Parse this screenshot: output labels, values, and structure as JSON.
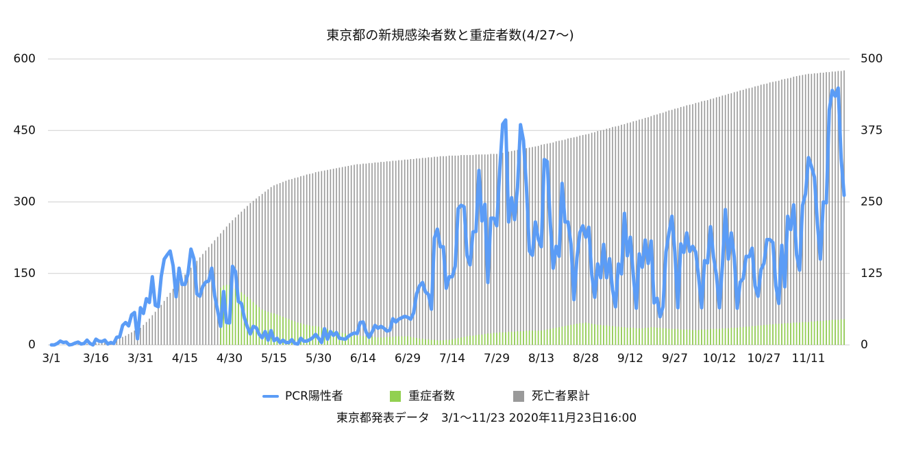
{
  "chart_data": {
    "type": "combo",
    "title": "東京都の新規感染者数と重症者数(4/27〜)",
    "source": "東京都発表データ　3/1〜11/23 2020年11月23日16:00",
    "categories": [
      "3/1",
      null,
      null,
      null,
      null,
      null,
      null,
      null,
      null,
      null,
      null,
      null,
      null,
      null,
      null,
      "3/16",
      null,
      null,
      null,
      null,
      null,
      null,
      null,
      null,
      null,
      null,
      null,
      null,
      null,
      null,
      "3/31",
      null,
      null,
      null,
      null,
      null,
      null,
      null,
      null,
      null,
      null,
      null,
      null,
      null,
      null,
      "4/15",
      null,
      null,
      null,
      null,
      null,
      null,
      null,
      null,
      null,
      null,
      null,
      null,
      null,
      null,
      "4/30",
      null,
      null,
      null,
      null,
      null,
      null,
      null,
      null,
      null,
      null,
      null,
      null,
      null,
      null,
      "5/15",
      null,
      null,
      null,
      null,
      null,
      null,
      null,
      null,
      null,
      null,
      null,
      null,
      null,
      null,
      "5/30",
      null,
      null,
      null,
      null,
      null,
      null,
      null,
      null,
      null,
      null,
      null,
      null,
      null,
      null,
      "6/14",
      null,
      null,
      null,
      null,
      null,
      null,
      null,
      null,
      null,
      null,
      null,
      null,
      null,
      null,
      "6/29",
      null,
      null,
      null,
      null,
      null,
      null,
      null,
      null,
      null,
      null,
      null,
      null,
      null,
      null,
      "7/14",
      null,
      null,
      null,
      null,
      null,
      null,
      null,
      null,
      null,
      null,
      null,
      null,
      null,
      null,
      "7/29",
      null,
      null,
      null,
      null,
      null,
      null,
      null,
      null,
      null,
      null,
      null,
      null,
      null,
      null,
      "8/13",
      null,
      null,
      null,
      null,
      null,
      null,
      null,
      null,
      null,
      null,
      null,
      null,
      null,
      null,
      "8/28",
      null,
      null,
      null,
      null,
      null,
      null,
      null,
      null,
      null,
      null,
      null,
      null,
      null,
      null,
      "9/12",
      null,
      null,
      null,
      null,
      null,
      null,
      null,
      null,
      null,
      null,
      null,
      null,
      null,
      null,
      "9/27",
      null,
      null,
      null,
      null,
      null,
      null,
      null,
      null,
      null,
      null,
      null,
      null,
      null,
      null,
      "10/12",
      null,
      null,
      null,
      null,
      null,
      null,
      null,
      null,
      null,
      null,
      null,
      null,
      null,
      null,
      "10/27",
      null,
      null,
      null,
      null,
      null,
      null,
      null,
      null,
      null,
      null,
      null,
      null,
      null,
      null,
      "11/11",
      null,
      null,
      null,
      null,
      null,
      null,
      null,
      null,
      null,
      null,
      null,
      null
    ],
    "series": [
      {
        "name": "死亡者累計",
        "type": "bar",
        "axis": "y2",
        "color": "#9a9a9a",
        "values": [
          0,
          0,
          0,
          0,
          0,
          0,
          0,
          0,
          1,
          1,
          1,
          1,
          2,
          2,
          2,
          3,
          3,
          4,
          5,
          6,
          7,
          8,
          10,
          12,
          14,
          16,
          19,
          22,
          25,
          27,
          30,
          35,
          40,
          46,
          52,
          58,
          64,
          70,
          77,
          84,
          91,
          98,
          105,
          111,
          117,
          123,
          129,
          135,
          141,
          147,
          153,
          159,
          165,
          171,
          177,
          183,
          189,
          195,
          201,
          207,
          213,
          218,
          223,
          228,
          233,
          238,
          243,
          248,
          252,
          256,
          260,
          264,
          268,
          272,
          276,
          279,
          281,
          283,
          285,
          287,
          289,
          290,
          292,
          293,
          295,
          296,
          298,
          299,
          300,
          302,
          303,
          304,
          305,
          306,
          307,
          308,
          309,
          310,
          311,
          312,
          313,
          314,
          315,
          316,
          316,
          317,
          317,
          318,
          318,
          319,
          319,
          320,
          320,
          321,
          321,
          322,
          322,
          323,
          323,
          324,
          324,
          325,
          325,
          326,
          326,
          327,
          327,
          328,
          328,
          329,
          329,
          330,
          330,
          330,
          331,
          331,
          331,
          331,
          332,
          332,
          332,
          332,
          332,
          333,
          333,
          333,
          333,
          333,
          334,
          334,
          334,
          335,
          336,
          337,
          338,
          339,
          340,
          341,
          342,
          343,
          344,
          345,
          346,
          347,
          348,
          350,
          351,
          352,
          353,
          354,
          356,
          357,
          358,
          359,
          361,
          362,
          363,
          364,
          366,
          367,
          368,
          369,
          371,
          372,
          374,
          375,
          376,
          378,
          379,
          381,
          382,
          383,
          385,
          386,
          388,
          389,
          391,
          392,
          394,
          395,
          397,
          398,
          400,
          402,
          403,
          405,
          406,
          408,
          410,
          411,
          413,
          414,
          416,
          417,
          419,
          420,
          421,
          423,
          424,
          426,
          427,
          428,
          430,
          431,
          433,
          434,
          436,
          437,
          439,
          440,
          442,
          443,
          445,
          446,
          448,
          449,
          450,
          452,
          453,
          455,
          456,
          457,
          459,
          460,
          461,
          462,
          464,
          465,
          466,
          467,
          469,
          470,
          471,
          472,
          473,
          474,
          474,
          475,
          475,
          476,
          476,
          477,
          477,
          478,
          478,
          479,
          479,
          480
        ]
      },
      {
        "name": "重症者数",
        "type": "bar",
        "axis": "y2",
        "color": "#92d050",
        "values": [
          null,
          null,
          null,
          null,
          null,
          null,
          null,
          null,
          null,
          null,
          null,
          null,
          null,
          null,
          null,
          null,
          null,
          null,
          null,
          null,
          null,
          null,
          null,
          null,
          null,
          null,
          null,
          null,
          null,
          null,
          null,
          null,
          null,
          null,
          null,
          null,
          null,
          null,
          null,
          null,
          null,
          null,
          null,
          null,
          null,
          null,
          null,
          null,
          null,
          null,
          null,
          null,
          null,
          null,
          null,
          null,
          null,
          100,
          104,
          105,
          105,
          100,
          98,
          95,
          92,
          88,
          84,
          80,
          75,
          70,
          66,
          62,
          60,
          58,
          56,
          55,
          53,
          51,
          49,
          47,
          45,
          43,
          41,
          39,
          38,
          36,
          35,
          34,
          33,
          33,
          32,
          30,
          29,
          28,
          26,
          25,
          24,
          22,
          21,
          20,
          19,
          18,
          17,
          16,
          16,
          15,
          15,
          14,
          14,
          14,
          13,
          13,
          13,
          14,
          14,
          14,
          15,
          15,
          15,
          15,
          15,
          14,
          13,
          12,
          11,
          11,
          10,
          10,
          9,
          9,
          8,
          8,
          8,
          9,
          9,
          10,
          11,
          12,
          13,
          14,
          15,
          16,
          16,
          17,
          18,
          18,
          19,
          20,
          20,
          21,
          21,
          22,
          22,
          22,
          23,
          23,
          23,
          24,
          24,
          24,
          25,
          25,
          25,
          25,
          25,
          25,
          26,
          27,
          28,
          29,
          30,
          31,
          32,
          33,
          34,
          35,
          36,
          37,
          38,
          38,
          39,
          38,
          37,
          36,
          35,
          35,
          34,
          34,
          33,
          33,
          32,
          32,
          31,
          31,
          30,
          30,
          30,
          29,
          29,
          29,
          30,
          30,
          31,
          31,
          30,
          30,
          29,
          29,
          28,
          28,
          28,
          28,
          27,
          27,
          27,
          27,
          26,
          26,
          26,
          27,
          27,
          27,
          28,
          28,
          28,
          28,
          29,
          29,
          29,
          30,
          30,
          30,
          31,
          31,
          32,
          32,
          33,
          33,
          34,
          34,
          35,
          35,
          36,
          36,
          37,
          37,
          37,
          38,
          38,
          38,
          39,
          39,
          39,
          40,
          40,
          40,
          41,
          41,
          42,
          42,
          42,
          43,
          43,
          44,
          44,
          44,
          45,
          45
        ]
      },
      {
        "name": "PCR陽性者",
        "type": "line",
        "axis": "y",
        "color": "#5b9cf6",
        "values": [
          0,
          0,
          3,
          8,
          5,
          6,
          0,
          1,
          4,
          6,
          2,
          3,
          10,
          3,
          0,
          12,
          8,
          7,
          10,
          2,
          5,
          3,
          16,
          17,
          41,
          47,
          40,
          63,
          68,
          13,
          78,
          66,
          97,
          89,
          143,
          83,
          80,
          144,
          180,
          189,
          197,
          166,
          101,
          161,
          127,
          127,
          149,
          201,
          181,
          107,
          102,
          123,
          132,
          134,
          161,
          103,
          72,
          39,
          112,
          47,
          46,
          165,
          154,
          91,
          87,
          57,
          38,
          23,
          39,
          36,
          22,
          15,
          28,
          10,
          30,
          9,
          14,
          5,
          10,
          5,
          5,
          11,
          3,
          2,
          14,
          8,
          8,
          11,
          15,
          22,
          14,
          5,
          34,
          12,
          28,
          20,
          26,
          14,
          13,
          12,
          18,
          22,
          25,
          24,
          47,
          48,
          27,
          16,
          27,
          41,
          35,
          39,
          35,
          29,
          31,
          55,
          48,
          54,
          57,
          60,
          58,
          54,
          67,
          107,
          124,
          131,
          111,
          106,
          75,
          224,
          243,
          206,
          206,
          119,
          143,
          143,
          165,
          286,
          293,
          290,
          188,
          168,
          237,
          238,
          366,
          260,
          295,
          131,
          266,
          266,
          250,
          367,
          463,
          472,
          258,
          309,
          263,
          331,
          462,
          429,
          331,
          197,
          188,
          258,
          222,
          206,
          389,
          385,
          260,
          161,
          207,
          186,
          339,
          258,
          258,
          212,
          95,
          182,
          236,
          250,
          226,
          247,
          148,
          100,
          170,
          141,
          211,
          141,
          181,
          116,
          80,
          170,
          149,
          276,
          187,
          226,
          146,
          77,
          191,
          163,
          220,
          171,
          218,
          88,
          98,
          59,
          80,
          195,
          235,
          270,
          194,
          78,
          212,
          194,
          235,
          196,
          207,
          195,
          143,
          78,
          177,
          172,
          248,
          185,
          146,
          78,
          166,
          284,
          180,
          235,
          184,
          77,
          132,
          139,
          186,
          185,
          203,
          124,
          102,
          158,
          171,
          221,
          221,
          215,
          124,
          87,
          209,
          122,
          270,
          242,
          294,
          189,
          157,
          293,
          317,
          393,
          374,
          352,
          255,
          180,
          300,
          298,
          493,
          534,
          522,
          539,
          391,
          314
        ]
      }
    ],
    "ylim": [
      0,
      600
    ],
    "yticks": [
      0,
      150,
      300,
      450,
      600
    ],
    "y2lim": [
      0,
      500
    ],
    "y2ticks": [
      0,
      125,
      250,
      375,
      500
    ],
    "grid": true,
    "legend": "bottom"
  }
}
